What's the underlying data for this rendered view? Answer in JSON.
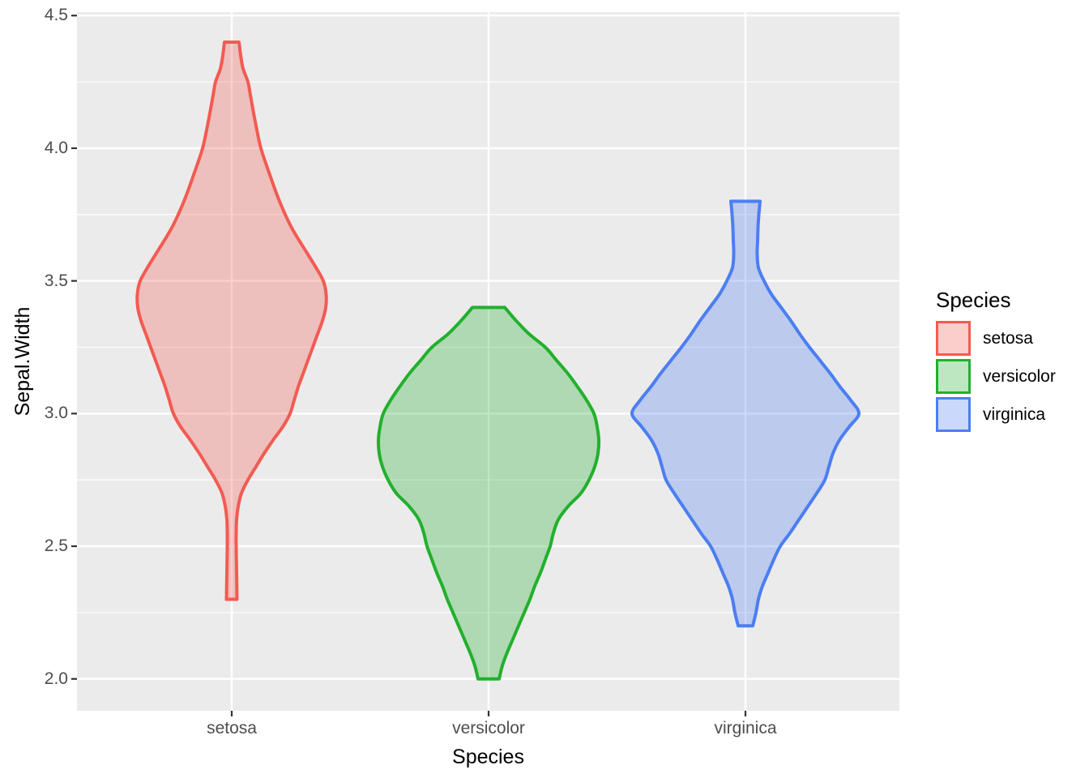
{
  "figure": {
    "background": "#ffffff",
    "panel_bg": "#ebebeb",
    "grid_color": "#ffffff",
    "tick_mark_color": "#333333",
    "tick_label_color": "#4d4d4d",
    "title_color": "#000000"
  },
  "chart_data": {
    "type": "violin",
    "title": "",
    "xlabel": "Species",
    "ylabel": "Sepal.Width",
    "categories": [
      "setosa",
      "versicolor",
      "virginica"
    ],
    "x_tick_labels": [
      "setosa",
      "versicolor",
      "virginica"
    ],
    "y_ticks": [
      2.0,
      2.5,
      3.0,
      3.5,
      4.0,
      4.5
    ],
    "y_tick_labels": [
      "2.0",
      "2.5",
      "3.0",
      "3.5",
      "4.0",
      "4.5"
    ],
    "y_minor_ticks": [
      2.25,
      2.75,
      3.25,
      3.75,
      4.25
    ],
    "ylim": [
      1.88,
      4.513
    ],
    "grid": true,
    "legend": {
      "position": "right",
      "title": "Species",
      "entries": [
        "setosa",
        "versicolor",
        "virginica"
      ]
    },
    "series": [
      {
        "name": "setosa",
        "color": "#F25B52",
        "fill_opacity": 0.3,
        "data_range": [
          2.3,
          4.4
        ],
        "profile": [
          [
            4.4,
            9
          ],
          [
            4.35,
            11
          ],
          [
            4.3,
            14
          ],
          [
            4.25,
            20
          ],
          [
            4.2,
            23
          ],
          [
            4.1,
            29
          ],
          [
            4.0,
            36
          ],
          [
            3.9,
            47
          ],
          [
            3.8,
            59
          ],
          [
            3.7,
            74
          ],
          [
            3.6,
            94
          ],
          [
            3.55,
            104
          ],
          [
            3.5,
            113
          ],
          [
            3.45,
            116.5
          ],
          [
            3.4,
            116
          ],
          [
            3.35,
            112
          ],
          [
            3.3,
            106
          ],
          [
            3.25,
            100
          ],
          [
            3.2,
            94
          ],
          [
            3.15,
            88
          ],
          [
            3.1,
            82
          ],
          [
            3.05,
            77
          ],
          [
            3.0,
            72
          ],
          [
            2.95,
            63
          ],
          [
            2.9,
            51
          ],
          [
            2.85,
            40
          ],
          [
            2.8,
            30
          ],
          [
            2.75,
            20
          ],
          [
            2.7,
            12
          ],
          [
            2.65,
            8
          ],
          [
            2.6,
            6
          ],
          [
            2.55,
            5.5
          ],
          [
            2.5,
            5.5
          ],
          [
            2.4,
            6
          ],
          [
            2.3,
            6.5
          ]
        ]
      },
      {
        "name": "versicolor",
        "color": "#22B02D",
        "fill_opacity": 0.3,
        "data_range": [
          2.0,
          3.4
        ],
        "profile": [
          [
            3.4,
            20
          ],
          [
            3.35,
            34
          ],
          [
            3.3,
            50
          ],
          [
            3.25,
            70
          ],
          [
            3.2,
            84
          ],
          [
            3.15,
            98
          ],
          [
            3.1,
            110
          ],
          [
            3.05,
            121
          ],
          [
            3.0,
            130
          ],
          [
            2.95,
            134
          ],
          [
            2.9,
            136
          ],
          [
            2.85,
            135
          ],
          [
            2.8,
            131
          ],
          [
            2.75,
            124
          ],
          [
            2.7,
            114
          ],
          [
            2.65,
            98
          ],
          [
            2.6,
            86
          ],
          [
            2.55,
            80
          ],
          [
            2.5,
            76
          ],
          [
            2.45,
            70
          ],
          [
            2.4,
            64
          ],
          [
            2.35,
            57
          ],
          [
            2.3,
            51
          ],
          [
            2.25,
            44
          ],
          [
            2.2,
            37
          ],
          [
            2.15,
            30
          ],
          [
            2.1,
            23
          ],
          [
            2.05,
            17
          ],
          [
            2.0,
            13
          ]
        ]
      },
      {
        "name": "virginica",
        "color": "#4C7EF2",
        "fill_opacity": 0.3,
        "data_range": [
          2.2,
          3.8
        ],
        "profile": [
          [
            3.8,
            18
          ],
          [
            3.75,
            16.5
          ],
          [
            3.7,
            15.5
          ],
          [
            3.65,
            15
          ],
          [
            3.6,
            14.5
          ],
          [
            3.55,
            16
          ],
          [
            3.5,
            23
          ],
          [
            3.45,
            32
          ],
          [
            3.4,
            44
          ],
          [
            3.35,
            56
          ],
          [
            3.3,
            67
          ],
          [
            3.25,
            79
          ],
          [
            3.2,
            92
          ],
          [
            3.15,
            105
          ],
          [
            3.1,
            117
          ],
          [
            3.05,
            130
          ],
          [
            3.0,
            140
          ],
          [
            2.95,
            128
          ],
          [
            2.9,
            116
          ],
          [
            2.85,
            108
          ],
          [
            2.8,
            103
          ],
          [
            2.75,
            98
          ],
          [
            2.7,
            88
          ],
          [
            2.65,
            77
          ],
          [
            2.6,
            66
          ],
          [
            2.55,
            55
          ],
          [
            2.5,
            43
          ],
          [
            2.45,
            35
          ],
          [
            2.4,
            28
          ],
          [
            2.35,
            21
          ],
          [
            2.3,
            16
          ],
          [
            2.25,
            13
          ],
          [
            2.2,
            9
          ]
        ]
      }
    ]
  }
}
